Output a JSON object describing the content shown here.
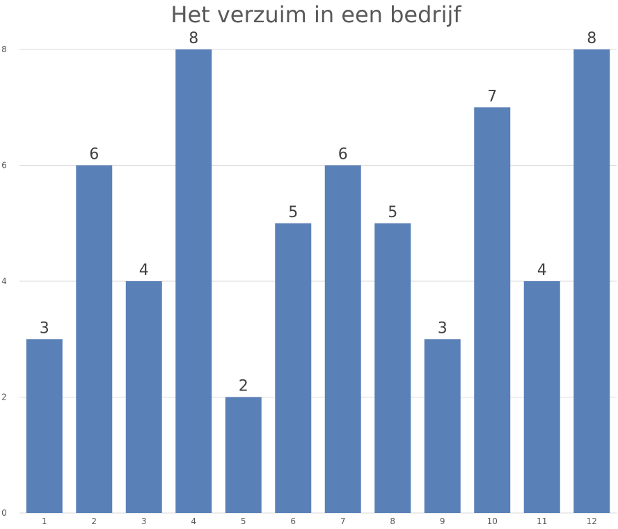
{
  "chart_data": {
    "type": "bar",
    "title": "Het verzuim in een bedrijf",
    "xlabel": "",
    "ylabel": "",
    "categories": [
      "1",
      "2",
      "3",
      "4",
      "5",
      "6",
      "7",
      "8",
      "9",
      "10",
      "11",
      "12"
    ],
    "values": [
      3,
      6,
      4,
      8,
      2,
      5,
      6,
      5,
      3,
      7,
      4,
      8
    ],
    "y_ticks": [
      "0",
      "2",
      "4",
      "6",
      "8"
    ],
    "ylim": [
      0,
      8
    ],
    "grid": true,
    "legend": "none",
    "data_labels": true,
    "colors": {
      "bar": "#5a80b8",
      "grid": "#d9d9d9",
      "title": "#595959",
      "data_label": "#404040"
    }
  }
}
